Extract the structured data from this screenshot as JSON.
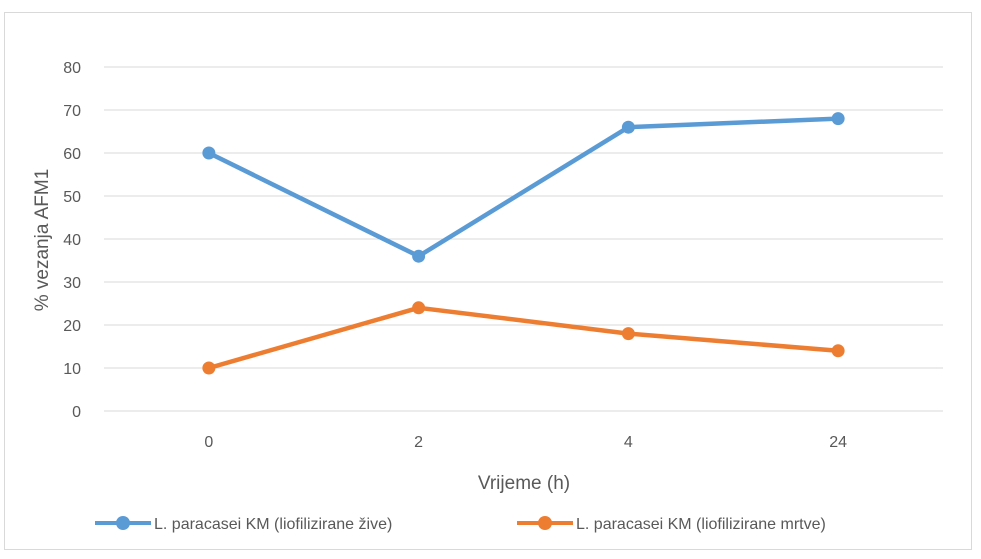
{
  "chart_data": {
    "type": "line",
    "categories": [
      "0",
      "2",
      "4",
      "24"
    ],
    "series": [
      {
        "name": "L. paracasei KM (liofilizirane žive)",
        "values": [
          60,
          36,
          66,
          68
        ],
        "color": "#5b9bd5"
      },
      {
        "name": "L. paracasei KM (liofilizirane mrtve)",
        "values": [
          10,
          24,
          18,
          14
        ],
        "color": "#ed7d31"
      }
    ],
    "yticks": [
      "0",
      "10",
      "20",
      "30",
      "40",
      "50",
      "60",
      "70",
      "80"
    ],
    "xlabel": "Vrijeme (h)",
    "ylabel": "% vezanja AFM1",
    "ylim": [
      0,
      80
    ],
    "grid": true,
    "legend_position": "bottom"
  }
}
